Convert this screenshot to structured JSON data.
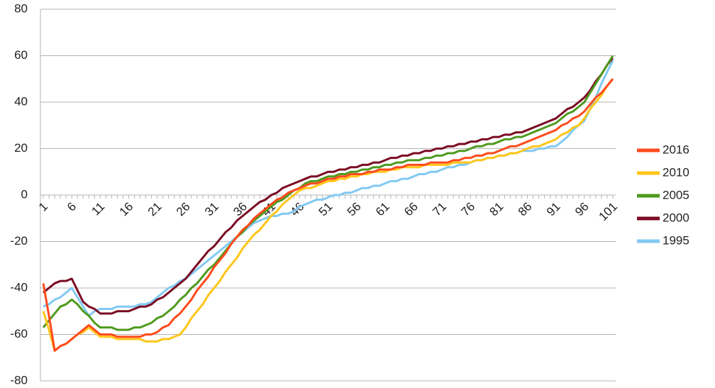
{
  "chart_data": {
    "type": "line",
    "categories": [
      "1",
      null,
      null,
      null,
      null,
      "6",
      null,
      null,
      null,
      null,
      "11",
      null,
      null,
      null,
      null,
      "16",
      null,
      null,
      null,
      null,
      "21",
      null,
      null,
      null,
      null,
      "26",
      null,
      null,
      null,
      null,
      "31",
      null,
      null,
      null,
      null,
      "36",
      null,
      null,
      null,
      null,
      "41",
      null,
      null,
      null,
      null,
      "46",
      null,
      null,
      null,
      null,
      "51",
      null,
      null,
      null,
      null,
      "56",
      null,
      null,
      null,
      null,
      "61",
      null,
      null,
      null,
      null,
      "66",
      null,
      null,
      null,
      null,
      "71",
      null,
      null,
      null,
      null,
      "76",
      null,
      null,
      null,
      null,
      "81",
      null,
      null,
      null,
      null,
      "86",
      null,
      null,
      null,
      null,
      "91",
      null,
      null,
      null,
      null,
      "96",
      null,
      null,
      null,
      null,
      "101"
    ],
    "series": [
      {
        "name": "2016",
        "color": "#ff4a1c",
        "values": [
          -38,
          -52,
          -67,
          -65,
          -64,
          -62,
          -60,
          -58,
          -56,
          -58,
          -60,
          -60,
          -60,
          -61,
          -61,
          -61,
          -61,
          -61,
          -60,
          -60,
          -59,
          -57,
          -56,
          -53,
          -51,
          -48,
          -45,
          -41,
          -38,
          -35,
          -31,
          -28,
          -25,
          -21,
          -18,
          -15,
          -13,
          -10,
          -8,
          -6,
          -4,
          -2,
          -1,
          1,
          2,
          3,
          4,
          5,
          5,
          6,
          7,
          7,
          8,
          8,
          9,
          9,
          9,
          10,
          10,
          11,
          11,
          11,
          12,
          12,
          13,
          13,
          13,
          13,
          14,
          14,
          14,
          14,
          15,
          15,
          16,
          16,
          17,
          17,
          18,
          18,
          19,
          20,
          21,
          21,
          22,
          23,
          24,
          25,
          26,
          27,
          28,
          30,
          31,
          33,
          34,
          36,
          39,
          42,
          44,
          47,
          50
        ]
      },
      {
        "name": "2010",
        "color": "#ffc61a",
        "values": [
          -50,
          -58,
          -67,
          -65,
          -64,
          -62,
          -60,
          -59,
          -57,
          -59,
          -61,
          -61,
          -61,
          -62,
          -62,
          -62,
          -62,
          -62,
          -63,
          -63,
          -63,
          -62,
          -62,
          -61,
          -60,
          -57,
          -53,
          -50,
          -47,
          -43,
          -40,
          -37,
          -33,
          -30,
          -27,
          -23,
          -20,
          -17,
          -15,
          -12,
          -9,
          -7,
          -4,
          -2,
          0,
          2,
          3,
          3,
          4,
          5,
          6,
          6,
          7,
          7,
          8,
          8,
          9,
          9,
          10,
          10,
          10,
          11,
          11,
          12,
          12,
          12,
          12,
          13,
          13,
          13,
          13,
          13,
          14,
          14,
          14,
          14,
          15,
          15,
          16,
          16,
          17,
          17,
          18,
          18,
          19,
          20,
          21,
          21,
          22,
          23,
          24,
          26,
          27,
          29,
          30,
          33,
          37,
          40,
          43,
          47,
          50
        ]
      },
      {
        "name": "2005",
        "color": "#4e9a1e",
        "values": [
          -57,
          -54,
          -51,
          -48,
          -47,
          -45,
          -47,
          -50,
          -52,
          -55,
          -57,
          -57,
          -57,
          -58,
          -58,
          -58,
          -57,
          -57,
          -56,
          -55,
          -53,
          -52,
          -50,
          -48,
          -45,
          -43,
          -40,
          -38,
          -35,
          -32,
          -30,
          -27,
          -24,
          -21,
          -18,
          -16,
          -13,
          -11,
          -9,
          -7,
          -5,
          -3,
          -2,
          0,
          2,
          3,
          5,
          6,
          6,
          7,
          8,
          8,
          9,
          9,
          10,
          10,
          11,
          11,
          12,
          12,
          13,
          13,
          14,
          14,
          15,
          15,
          15,
          16,
          16,
          17,
          17,
          18,
          18,
          19,
          19,
          20,
          21,
          21,
          22,
          22,
          23,
          24,
          24,
          25,
          25,
          26,
          27,
          28,
          29,
          30,
          31,
          33,
          35,
          36,
          38,
          40,
          44,
          48,
          52,
          56,
          60
        ]
      },
      {
        "name": "2000",
        "color": "#7a0a22",
        "values": [
          -42,
          -40,
          -38,
          -37,
          -37,
          -36,
          -41,
          -46,
          -48,
          -49,
          -51,
          -51,
          -51,
          -50,
          -50,
          -50,
          -49,
          -48,
          -48,
          -47,
          -45,
          -44,
          -42,
          -40,
          -38,
          -36,
          -33,
          -30,
          -27,
          -24,
          -22,
          -19,
          -16,
          -14,
          -11,
          -9,
          -7,
          -5,
          -3,
          -2,
          0,
          1,
          3,
          4,
          5,
          6,
          7,
          8,
          8,
          9,
          10,
          10,
          11,
          11,
          12,
          12,
          13,
          13,
          14,
          14,
          15,
          16,
          16,
          17,
          17,
          18,
          18,
          19,
          19,
          20,
          20,
          21,
          21,
          22,
          22,
          23,
          23,
          24,
          24,
          25,
          25,
          26,
          26,
          27,
          27,
          28,
          29,
          30,
          31,
          32,
          33,
          35,
          37,
          38,
          40,
          42,
          45,
          49,
          52,
          56,
          59
        ]
      },
      {
        "name": "1995",
        "color": "#82c9f2",
        "values": [
          -48,
          -47,
          -45,
          -44,
          -42,
          -40,
          -44,
          -48,
          -52,
          -50,
          -49,
          -49,
          -49,
          -48,
          -48,
          -48,
          -48,
          -47,
          -47,
          -46,
          -44,
          -42,
          -40,
          -39,
          -37,
          -36,
          -34,
          -32,
          -30,
          -28,
          -26,
          -24,
          -22,
          -20,
          -18,
          -16,
          -14,
          -12,
          -11,
          -10,
          -9,
          -9,
          -8,
          -8,
          -7,
          -5,
          -4,
          -3,
          -2,
          -2,
          -1,
          0,
          0,
          1,
          1,
          2,
          3,
          3,
          4,
          4,
          5,
          6,
          6,
          7,
          7,
          8,
          9,
          9,
          10,
          10,
          11,
          12,
          12,
          13,
          13,
          14,
          15,
          15,
          16,
          16,
          17,
          17,
          18,
          18,
          19,
          19,
          19,
          20,
          20,
          21,
          21,
          23,
          25,
          28,
          30,
          32,
          37,
          42,
          48,
          53,
          58
        ]
      }
    ],
    "ylim": [
      -80,
      80
    ],
    "yticks": [
      -80,
      -60,
      -40,
      -20,
      0,
      20,
      40,
      60,
      80
    ],
    "grid": true,
    "legend": "right"
  }
}
